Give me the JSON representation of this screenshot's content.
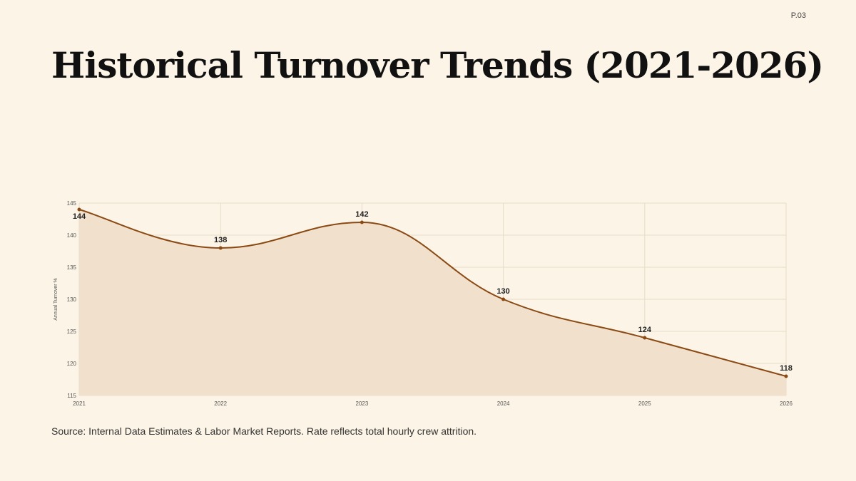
{
  "page": {
    "page_number": "P.03",
    "title": "Historical Turnover Trends (2021-2026)",
    "source": "Source: Internal Data Estimates & Labor Market Reports. Rate reflects total hourly crew attrition."
  },
  "chart_data": {
    "type": "area",
    "x": [
      "2021",
      "2022",
      "2023",
      "2024",
      "2025",
      "2026"
    ],
    "series": [
      {
        "values": [
          144,
          138,
          142,
          130,
          124,
          118
        ]
      }
    ],
    "ylabel": "Annual Turnover %",
    "ylim": [
      115,
      145
    ],
    "yticks": [
      115,
      120,
      125,
      130,
      135,
      140,
      145
    ],
    "grid": true,
    "colors": {
      "line": "#8b4a14",
      "fill": "#f0e0cc",
      "grid": "#e6dccb",
      "axis_text": "#555555",
      "data_label": "#222222"
    }
  }
}
